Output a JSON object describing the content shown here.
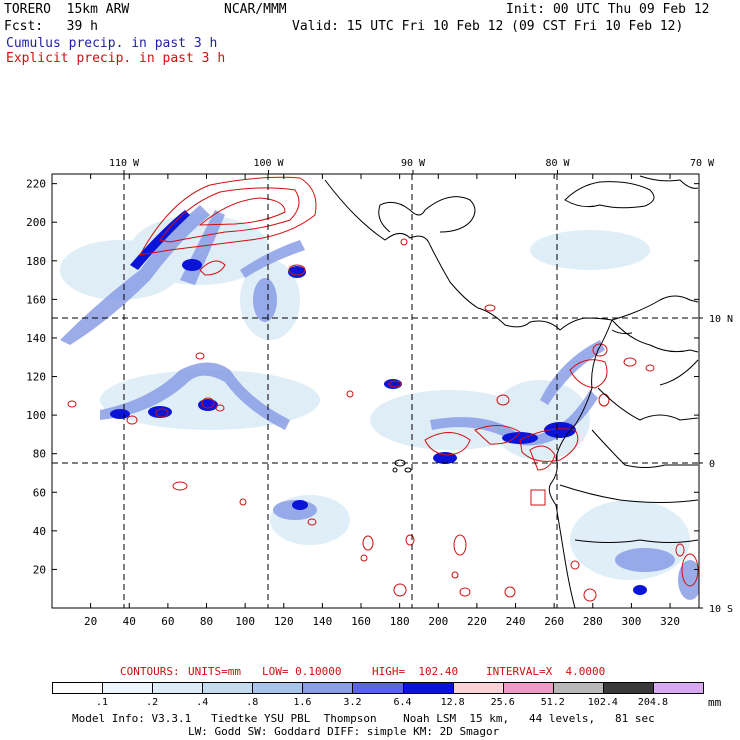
{
  "header": {
    "model_name": "TORERO  15km ARW",
    "org": "NCAR/MMM",
    "init": "Init: 00 UTC Thu 09 Feb 12",
    "fcst": "Fcst:   39 h",
    "valid": "Valid: 15 UTC Fri 10 Feb 12 (09 CST Fri 10 Feb 12)",
    "field_cumulus": "Cumulus precip. in past 3 h",
    "field_explicit": "Explicit precip. in past 3 h"
  },
  "map": {
    "lon_labels": [
      "110 W",
      "100 W",
      "90 W",
      "80 W",
      "70 W"
    ],
    "lat_labels": [
      "10 N",
      "0",
      "10 S"
    ],
    "x_ticks": [
      "20",
      "40",
      "60",
      "80",
      "100",
      "120",
      "140",
      "160",
      "180",
      "200",
      "220",
      "240",
      "260",
      "280",
      "300",
      "320"
    ],
    "y_ticks": [
      "220",
      "200",
      "180",
      "160",
      "140",
      "120",
      "100",
      "80",
      "60",
      "40",
      "20"
    ]
  },
  "contours": {
    "label": "CONTOURS:",
    "units": "UNITS=mm",
    "low": "LOW= 0.10000",
    "high": "HIGH=  102.40",
    "interval": "INTERVAL=X  4.0000"
  },
  "colorbar": {
    "unit": "mm",
    "levels": [
      ".1",
      ".2",
      ".4",
      ".8",
      "1.6",
      "3.2",
      "6.4",
      "12.8",
      "25.6",
      "51.2",
      "102.4",
      "204.8"
    ],
    "colors": [
      "#ffffff",
      "#eef6fb",
      "#dcecf6",
      "#c4dcef",
      "#a8c4ea",
      "#8a9ee6",
      "#5c64e6",
      "#0a14d8",
      "#f8d2d6",
      "#f09ac6",
      "#b8b8b8",
      "#3a3a3a",
      "#d8a8f0"
    ]
  },
  "footer": {
    "line1": "Model Info: V3.3.1   Tiedtke YSU PBL  Thompson    Noah LSM  15 km,   44 levels,   81 sec",
    "line2": "LW: Godd SW: Goddard DIFF: simple KM: 2D Smagor"
  }
}
